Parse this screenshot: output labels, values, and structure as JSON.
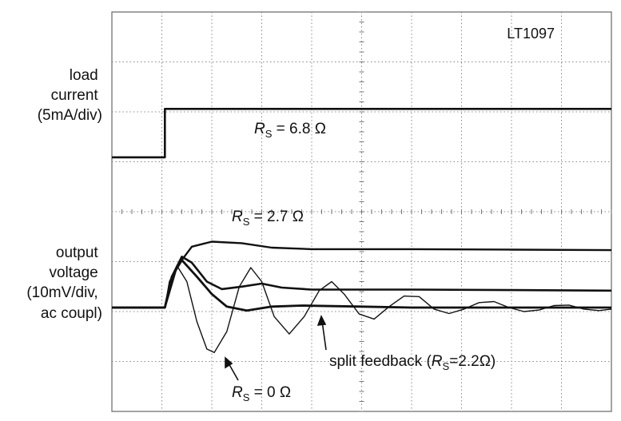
{
  "chart_data": {
    "type": "line",
    "title": "LT1097",
    "grid": true,
    "divisions": {
      "x": 10,
      "y": 8
    },
    "left_labels": {
      "load_current": [
        "load",
        "current",
        "(5mA/div)"
      ],
      "output_voltage": [
        "output",
        "voltage",
        "(10mV/div,",
        "ac coupl)"
      ]
    },
    "series": [
      {
        "name": "load current",
        "points": [
          [
            0,
            5.09
          ],
          [
            1.06,
            5.09
          ],
          [
            1.06,
            6.06
          ],
          [
            10,
            6.06
          ]
        ]
      },
      {
        "name": "R_S = 6.8 Ω",
        "points": [
          [
            0,
            2.08
          ],
          [
            1.06,
            2.08
          ],
          [
            1.3,
            2.9
          ],
          [
            1.6,
            3.3
          ],
          [
            2,
            3.4
          ],
          [
            2.6,
            3.37
          ],
          [
            3.2,
            3.28
          ],
          [
            4,
            3.25
          ],
          [
            6,
            3.25
          ],
          [
            8,
            3.24
          ],
          [
            10,
            3.23
          ]
        ]
      },
      {
        "name": "R_S = 2.7 Ω",
        "points": [
          [
            0,
            2.08
          ],
          [
            1.06,
            2.08
          ],
          [
            1.2,
            2.7
          ],
          [
            1.4,
            3.1
          ],
          [
            1.6,
            2.98
          ],
          [
            1.9,
            2.6
          ],
          [
            2.2,
            2.45
          ],
          [
            2.6,
            2.5
          ],
          [
            3.0,
            2.56
          ],
          [
            3.4,
            2.48
          ],
          [
            4,
            2.44
          ],
          [
            6,
            2.44
          ],
          [
            8,
            2.43
          ],
          [
            10,
            2.42
          ]
        ]
      },
      {
        "name": "split feedback",
        "points": [
          [
            0,
            2.08
          ],
          [
            1.06,
            2.08
          ],
          [
            1.2,
            2.7
          ],
          [
            1.4,
            3.03
          ],
          [
            1.7,
            2.7
          ],
          [
            2.0,
            2.35
          ],
          [
            2.3,
            2.1
          ],
          [
            2.7,
            2.02
          ],
          [
            3.2,
            2.1
          ],
          [
            3.8,
            2.12
          ],
          [
            5,
            2.1
          ],
          [
            6,
            2.08
          ],
          [
            8,
            2.08
          ],
          [
            10,
            2.08
          ]
        ]
      },
      {
        "name": "R_S = 0 Ω",
        "points": [
          [
            0,
            2.08
          ],
          [
            1.06,
            2.08
          ],
          [
            1.15,
            2.6
          ],
          [
            1.3,
            2.92
          ],
          [
            1.5,
            2.6
          ],
          [
            1.7,
            1.8
          ],
          [
            1.9,
            1.25
          ],
          [
            2.05,
            1.18
          ],
          [
            2.3,
            1.6
          ],
          [
            2.55,
            2.5
          ],
          [
            2.78,
            2.88
          ],
          [
            3.0,
            2.6
          ],
          [
            3.25,
            1.9
          ],
          [
            3.55,
            1.55
          ],
          [
            3.85,
            1.9
          ],
          [
            4.15,
            2.42
          ],
          [
            4.4,
            2.6
          ],
          [
            4.65,
            2.35
          ],
          [
            4.95,
            1.95
          ],
          [
            5.25,
            1.85
          ],
          [
            5.55,
            2.1
          ],
          [
            5.85,
            2.31
          ],
          [
            6.15,
            2.3
          ],
          [
            6.45,
            2.05
          ],
          [
            6.75,
            1.96
          ],
          [
            7.05,
            2.05
          ],
          [
            7.35,
            2.18
          ],
          [
            7.65,
            2.2
          ],
          [
            7.95,
            2.08
          ],
          [
            8.25,
            2.0
          ],
          [
            8.55,
            2.03
          ],
          [
            8.85,
            2.12
          ],
          [
            9.15,
            2.13
          ],
          [
            9.45,
            2.05
          ],
          [
            9.75,
            2.02
          ],
          [
            10,
            2.05
          ]
        ]
      }
    ],
    "annotations": {
      "rs68": {
        "r": "R",
        "sub": "S",
        "rest": " = 6.8 Ω"
      },
      "rs27": {
        "r": "R",
        "sub": "S",
        "rest": " = 2.7 Ω"
      },
      "split": {
        "pre": "split feedback (",
        "r": "R",
        "sub": "S",
        "rest": "=2.2Ω)"
      },
      "rs0": {
        "r": "R",
        "sub": "S",
        "rest": " = 0 Ω"
      }
    }
  }
}
